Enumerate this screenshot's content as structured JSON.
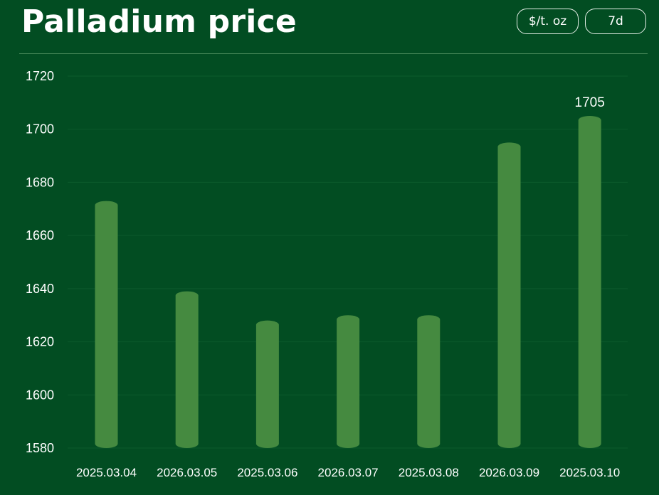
{
  "header": {
    "title": "Palladium price",
    "unit_button": "$/t. oz",
    "range_button": "7d"
  },
  "colors": {
    "background": "#024d22",
    "bar": "#458a40",
    "grid": "#0c5a2c",
    "text": "#ffffff"
  },
  "chart_data": {
    "type": "bar",
    "categories": [
      "2025.03.04",
      "2026.03.05",
      "2025.03.06",
      "2026.03.07",
      "2025.03.08",
      "2026.03.09",
      "2025.03.10"
    ],
    "values": [
      1673,
      1639,
      1628,
      1630,
      1630,
      1695,
      1705
    ],
    "ylim": [
      1580,
      1720
    ],
    "yticks": [
      1580,
      1600,
      1620,
      1640,
      1660,
      1680,
      1700,
      1720
    ],
    "data_labels": [
      {
        "index": 6,
        "text": "1705"
      }
    ],
    "grid": true,
    "title": "",
    "xlabel": "",
    "ylabel": ""
  }
}
